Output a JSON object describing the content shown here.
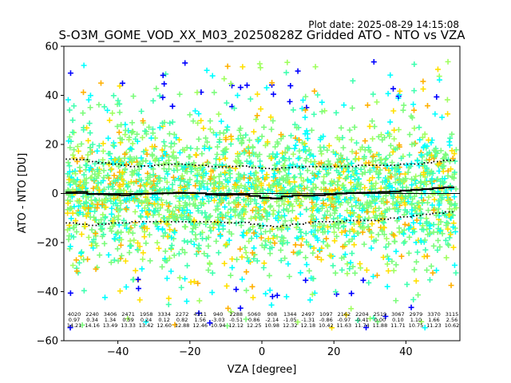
{
  "chart_data": {
    "type": "scatter",
    "title": "S-O3M_GOME_VOD_XX_M03_20250828Z Gridded ATO - NTO vs VZA",
    "plot_date": "Plot date: 2025-08-29 14:15:08",
    "xlabel": "VZA [degree]",
    "ylabel": "ATO - NTO [DU]",
    "xlim": [
      -55,
      55
    ],
    "ylim": [
      -60,
      60
    ],
    "x_ticks": [
      -40,
      -20,
      0,
      20,
      40
    ],
    "y_ticks": [
      -60,
      -40,
      -20,
      0,
      20,
      40,
      60
    ],
    "x_tick_labels": [
      "−40",
      "−20",
      "0",
      "20",
      "40"
    ],
    "y_tick_labels": [
      "−60",
      "−40",
      "−20",
      "0",
      "20",
      "40",
      "60"
    ],
    "grid": false,
    "marker": "plus",
    "colors": {
      "scatter": [
        "#7CFC7C",
        "#40FFB0",
        "#00FFFF",
        "#FFE000",
        "#FFB000",
        "#A0FF60",
        "#0000FF"
      ],
      "mean_line": "#000000",
      "std_lines": "#000000"
    },
    "bin_centers": [
      -53,
      -50,
      -47,
      -44,
      -41,
      -38,
      -35,
      -32,
      -29,
      -26,
      -23,
      -20,
      -17,
      -14,
      -11,
      -8,
      -5,
      -2,
      1,
      4,
      7,
      10,
      13,
      16,
      19,
      22,
      25,
      28,
      31,
      34,
      37,
      40,
      43,
      46,
      49,
      52
    ],
    "mean": [
      0.5,
      0.6,
      -0.2,
      -0.3,
      -0.5,
      -0.7,
      -0.3,
      -0.1,
      0.0,
      0.1,
      0.3,
      0.2,
      0.1,
      -0.4,
      -0.6,
      -0.4,
      -0.5,
      -1.0,
      -1.8,
      -2.0,
      -1.2,
      -0.8,
      -0.9,
      -0.7,
      -0.4,
      0.0,
      0.2,
      0.3,
      0.4,
      0.6,
      0.8,
      1.2,
      1.5,
      1.8,
      2.2,
      2.5
    ],
    "upper_std": [
      14.0,
      13.8,
      13.0,
      12.5,
      12.0,
      11.5,
      11.0,
      11.2,
      11.5,
      11.8,
      12.0,
      11.8,
      11.5,
      11.0,
      10.8,
      11.0,
      11.2,
      10.5,
      10.2,
      10.0,
      10.5,
      10.8,
      11.0,
      11.0,
      11.0,
      11.0,
      11.0,
      11.5,
      11.5,
      11.5,
      11.5,
      12.0,
      12.0,
      12.5,
      13.0,
      13.5
    ],
    "lower_std": [
      -12.0,
      -12.5,
      -13.0,
      -12.5,
      -12.0,
      -12.0,
      -11.5,
      -11.5,
      -11.5,
      -11.5,
      -11.5,
      -11.5,
      -11.5,
      -11.5,
      -11.8,
      -12.0,
      -11.8,
      -12.5,
      -13.2,
      -13.5,
      -13.0,
      -12.5,
      -12.0,
      -11.5,
      -11.5,
      -11.5,
      -11.0,
      -11.0,
      -11.0,
      -10.5,
      -10.0,
      -9.5,
      -9.0,
      -8.5,
      -8.0,
      -7.5
    ],
    "annotations": {
      "counts": [
        "4020",
        "2240",
        "3406",
        "2471",
        "1958",
        "3334",
        "2272",
        "4311",
        "940",
        "2288",
        "5060",
        "908",
        "1344",
        "2497",
        "1097",
        "2162",
        "2204",
        "2519",
        "3067",
        "2979",
        "3370",
        "3115"
      ],
      "means": [
        "0.97",
        "0.34",
        "1.34",
        "0.59",
        "0.24",
        "0.12",
        "0.82",
        "1.56",
        "-3.03",
        "-0.51",
        "0.86",
        "-2.14",
        "-1.05",
        "-1.31",
        "-0.86",
        "-0.97",
        "-0.41",
        "0.00",
        "0.10",
        "1.10",
        "1.66",
        "2.56"
      ],
      "stds": [
        "14.21",
        "14.16",
        "13.49",
        "13.33",
        "13.42",
        "12.60",
        "12.88",
        "12.46",
        "10.94",
        "12.12",
        "12.25",
        "10.98",
        "12.32",
        "12.18",
        "10.42",
        "11.63",
        "11.74",
        "11.88",
        "11.71",
        "10.75",
        "11.23",
        "10.62"
      ]
    }
  }
}
